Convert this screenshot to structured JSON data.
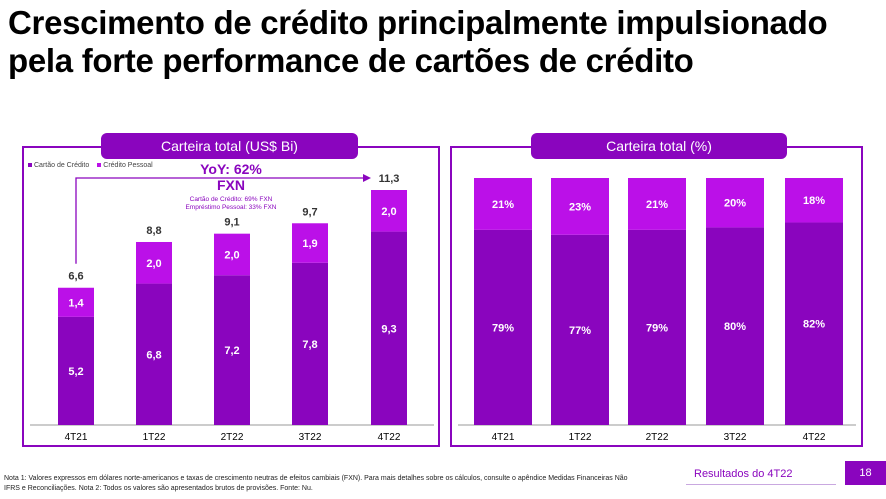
{
  "title": "Crescimento de crédito principalmente impulsionado pela forte performance de cartões de crédito",
  "colors": {
    "dark": "#8a05be",
    "light": "#bb10e8",
    "accent": "#8a05be"
  },
  "left_chart": {
    "header": "Carteira total (US$ Bi)",
    "legend": [
      "Cartão de Crédito",
      "Crédito Pessoal"
    ],
    "yoy_line1": "YoY: 62%",
    "yoy_line2": "FXN",
    "yoy_detail1": "Cartão de Crédito: 69% FXN",
    "yoy_detail2": "Empréstimo Pessoal: 33% FXN"
  },
  "right_chart": {
    "header": "Carteira total (%)"
  },
  "chart_data": [
    {
      "type": "bar",
      "stacked": true,
      "title": "Carteira total (US$ Bi)",
      "categories": [
        "4T21",
        "1T22",
        "2T22",
        "3T22",
        "4T22"
      ],
      "series": [
        {
          "name": "Cartão de Crédito",
          "values": [
            "5,2",
            "6,8",
            "7,2",
            "7,8",
            "9,3"
          ]
        },
        {
          "name": "Crédito Pessoal",
          "values": [
            "1,4",
            "2,0",
            "2,0",
            "1,9",
            "2,0"
          ]
        }
      ],
      "totals": [
        "6,6",
        "8,8",
        "9,1",
        "9,7",
        "11,3"
      ],
      "ylim": [
        0,
        11.3
      ]
    },
    {
      "type": "bar",
      "stacked": true,
      "title": "Carteira total (%)",
      "categories": [
        "4T21",
        "1T22",
        "2T22",
        "3T22",
        "4T22"
      ],
      "series": [
        {
          "name": "Cartão de Crédito",
          "values": [
            "79%",
            "77%",
            "79%",
            "80%",
            "82%"
          ]
        },
        {
          "name": "Crédito Pessoal",
          "values": [
            "21%",
            "23%",
            "21%",
            "20%",
            "18%"
          ]
        }
      ],
      "ylim": [
        0,
        100
      ]
    }
  ],
  "footnote": {
    "line1": "Nota 1: Valores expressos em dólares norte-americanos e taxas de crescimento neutras de efeitos cambiais (FXN). Para mais detalhes sobre os cálculos, consulte o apêndice Medidas Financeiras Não",
    "line2": "IFRS e Reconciliações. Nota 2: Todos os valores são apresentados brutos de provisões. Fonte: Nu."
  },
  "footer": {
    "label": "Resultados do 4T22",
    "page": "18"
  }
}
